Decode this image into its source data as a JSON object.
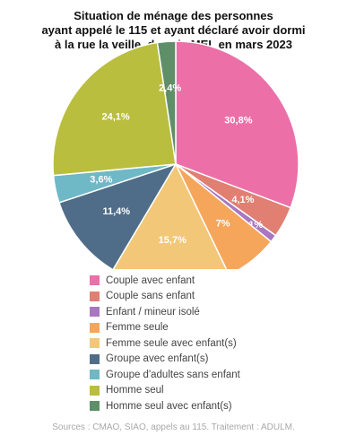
{
  "chart_data": {
    "type": "pie",
    "title_lines": [
      "Situation de ménage des personnes",
      "ayant appelé le 115 et ayant déclaré avoir dormi",
      "à la rue la veille, dans la MEL en mars 2023"
    ],
    "slices": [
      {
        "label": "Couple avec enfant",
        "value": 30.8,
        "value_label": "30,8%",
        "color": "#ec6fa8"
      },
      {
        "label": "Couple sans enfant",
        "value": 4.1,
        "value_label": "4,1%",
        "color": "#e07f72"
      },
      {
        "label": "Enfant / mineur isolé",
        "value": 1,
        "value_label": "1%",
        "color": "#a977c2"
      },
      {
        "label": "Femme seule",
        "value": 7,
        "value_label": "7%",
        "color": "#f5a65b"
      },
      {
        "label": "Femme seule avec enfant(s)",
        "value": 15.7,
        "value_label": "15,7%",
        "color": "#f2c778"
      },
      {
        "label": "Groupe avec enfant(s)",
        "value": 11.4,
        "value_label": "11,4%",
        "color": "#4f6d88"
      },
      {
        "label": "Groupe d'adultes sans enfant",
        "value": 3.6,
        "value_label": "3,6%",
        "color": "#6fb8c6"
      },
      {
        "label": "Homme seul",
        "value": 24.1,
        "value_label": "24,1%",
        "color": "#b9be3f"
      },
      {
        "label": "Homme seul avec enfant(s)",
        "value": 2.4,
        "value_label": "2,4%",
        "color": "#5f8f68"
      }
    ],
    "legend_position": "bottom"
  },
  "source": "Sources : CMAO, SIAO, appels au 115. Traitement : ADULM."
}
